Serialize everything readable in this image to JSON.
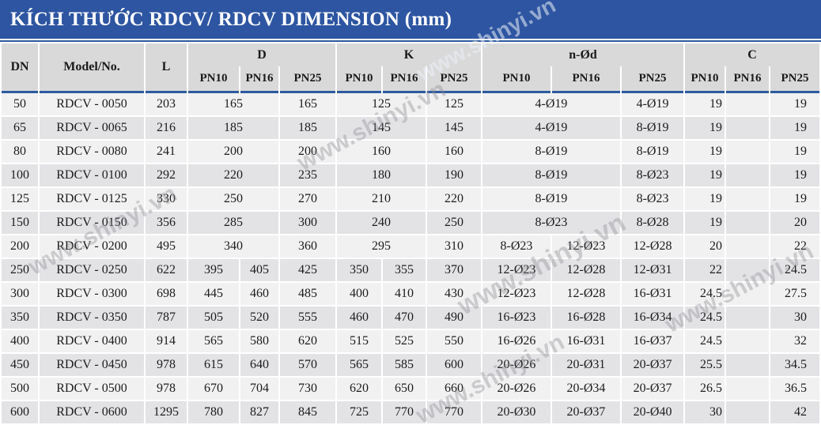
{
  "title": "KÍCH THƯỚC RDCV/ RDCV DIMENSION (mm)",
  "watermark": {
    "text": "www.shinyi.vn"
  },
  "colors": {
    "title_bg": "#2d55a1",
    "accent_line": "#2d5aa0",
    "header_bg": "#d9d9d9",
    "row_odd": "#f1f1f1",
    "row_even": "#e3e3e6"
  },
  "table": {
    "headers": {
      "dn": "DN",
      "model": "Model/No.",
      "l": "L",
      "d": "D",
      "k": "K",
      "nod": "n-Ød",
      "c": "C",
      "pn": [
        "PN10",
        "PN16",
        "PN25"
      ]
    },
    "rows": [
      {
        "dn": "50",
        "model": "RDCV - 0050",
        "l": "203",
        "d": [
          "165",
          null,
          "165"
        ],
        "k": [
          "125",
          null,
          "125"
        ],
        "nod": [
          "4-Ø19",
          null,
          "4-Ø19"
        ],
        "c": [
          "19",
          "",
          "19"
        ]
      },
      {
        "dn": "65",
        "model": "RDCV - 0065",
        "l": "216",
        "d": [
          "185",
          null,
          "185"
        ],
        "k": [
          "145",
          null,
          "145"
        ],
        "nod": [
          "4-Ø19",
          null,
          "8-Ø19"
        ],
        "c": [
          "19",
          "",
          "19"
        ]
      },
      {
        "dn": "80",
        "model": "RDCV - 0080",
        "l": "241",
        "d": [
          "200",
          null,
          "200"
        ],
        "k": [
          "160",
          null,
          "160"
        ],
        "nod": [
          "8-Ø19",
          null,
          "8-Ø19"
        ],
        "c": [
          "19",
          "",
          "19"
        ]
      },
      {
        "dn": "100",
        "model": "RDCV - 0100",
        "l": "292",
        "d": [
          "220",
          null,
          "235"
        ],
        "k": [
          "180",
          null,
          "190"
        ],
        "nod": [
          "8-Ø19",
          null,
          "8-Ø23"
        ],
        "c": [
          "19",
          "",
          "19"
        ]
      },
      {
        "dn": "125",
        "model": "RDCV - 0125",
        "l": "330",
        "d": [
          "250",
          null,
          "270"
        ],
        "k": [
          "210",
          null,
          "220"
        ],
        "nod": [
          "8-Ø19",
          null,
          "8-Ø23"
        ],
        "c": [
          "19",
          "",
          "19"
        ]
      },
      {
        "dn": "150",
        "model": "RDCV - 0150",
        "l": "356",
        "d": [
          "285",
          null,
          "300"
        ],
        "k": [
          "240",
          null,
          "250"
        ],
        "nod": [
          "8-Ø23",
          null,
          "8-Ø28"
        ],
        "c": [
          "19",
          "",
          "20"
        ]
      },
      {
        "dn": "200",
        "model": "RDCV - 0200",
        "l": "495",
        "d": [
          "340",
          null,
          "360"
        ],
        "k": [
          "295",
          null,
          "310"
        ],
        "nod": [
          "8-Ø23",
          "12-Ø23",
          "12-Ø28"
        ],
        "c": [
          "20",
          "",
          "22"
        ]
      },
      {
        "dn": "250",
        "model": "RDCV - 0250",
        "l": "622",
        "d": [
          "395",
          "405",
          "425"
        ],
        "k": [
          "350",
          "355",
          "370"
        ],
        "nod": [
          "12-Ø23",
          "12-Ø28",
          "12-Ø31"
        ],
        "c": [
          "22",
          "",
          "24.5"
        ]
      },
      {
        "dn": "300",
        "model": "RDCV - 0300",
        "l": "698",
        "d": [
          "445",
          "460",
          "485"
        ],
        "k": [
          "400",
          "410",
          "430"
        ],
        "nod": [
          "12-Ø23",
          "12-Ø28",
          "16-Ø31"
        ],
        "c": [
          "24.5",
          "",
          "27.5"
        ]
      },
      {
        "dn": "350",
        "model": "RDCV - 0350",
        "l": "787",
        "d": [
          "505",
          "520",
          "555"
        ],
        "k": [
          "460",
          "470",
          "490"
        ],
        "nod": [
          "16-Ø23",
          "16-Ø28",
          "16-Ø34"
        ],
        "c": [
          "24.5",
          "",
          "30"
        ]
      },
      {
        "dn": "400",
        "model": "RDCV - 0400",
        "l": "914",
        "d": [
          "565",
          "580",
          "620"
        ],
        "k": [
          "515",
          "525",
          "550"
        ],
        "nod": [
          "16-Ø26",
          "16-Ø31",
          "16-Ø37"
        ],
        "c": [
          "24.5",
          "",
          "32"
        ]
      },
      {
        "dn": "450",
        "model": "RDCV - 0450",
        "l": "978",
        "d": [
          "615",
          "640",
          "570"
        ],
        "k": [
          "565",
          "585",
          "600"
        ],
        "nod": [
          "20-Ø26",
          "20-Ø31",
          "20-Ø37"
        ],
        "c": [
          "25.5",
          "",
          "34.5"
        ]
      },
      {
        "dn": "500",
        "model": "RDCV - 0500",
        "l": "978",
        "d": [
          "670",
          "704",
          "730"
        ],
        "k": [
          "620",
          "650",
          "660"
        ],
        "nod": [
          "20-Ø26",
          "20-Ø34",
          "20-Ø37"
        ],
        "c": [
          "26.5",
          "",
          "36.5"
        ]
      },
      {
        "dn": "600",
        "model": "RDCV - 0600",
        "l": "1295",
        "d": [
          "780",
          "827",
          "845"
        ],
        "k": [
          "725",
          "770",
          "770"
        ],
        "nod": [
          "20-Ø30",
          "20-Ø37",
          "20-Ø40"
        ],
        "c": [
          "30",
          "",
          "42"
        ]
      }
    ]
  }
}
